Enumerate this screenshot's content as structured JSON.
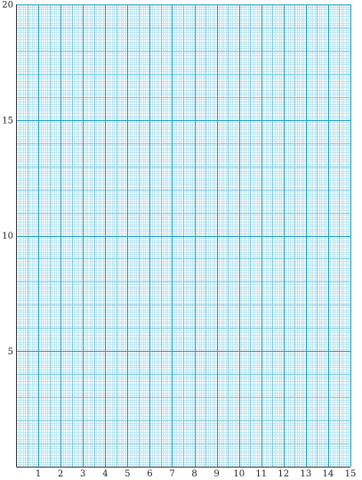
{
  "graph": {
    "x_range": [
      0,
      15
    ],
    "y_range": [
      0,
      20
    ],
    "minor_divisions_per_unit_x": 10,
    "minor_divisions_per_unit_y": 10,
    "x_ticks": [
      "1",
      "2",
      "3",
      "4",
      "5",
      "6",
      "7",
      "8",
      "9",
      "10",
      "11",
      "12",
      "13",
      "14",
      "15"
    ],
    "y_ticks": [
      {
        "value": 5,
        "label": "5"
      },
      {
        "value": 10,
        "label": "10"
      },
      {
        "value": 15,
        "label": "15"
      },
      {
        "value": 20,
        "label": "20"
      }
    ],
    "colors": {
      "minor_line": "#bfe6f1",
      "mid_line": "#7fcbe0",
      "major_line": "#1e9cbf",
      "axis_line": "#333333",
      "label": "#222222"
    }
  }
}
